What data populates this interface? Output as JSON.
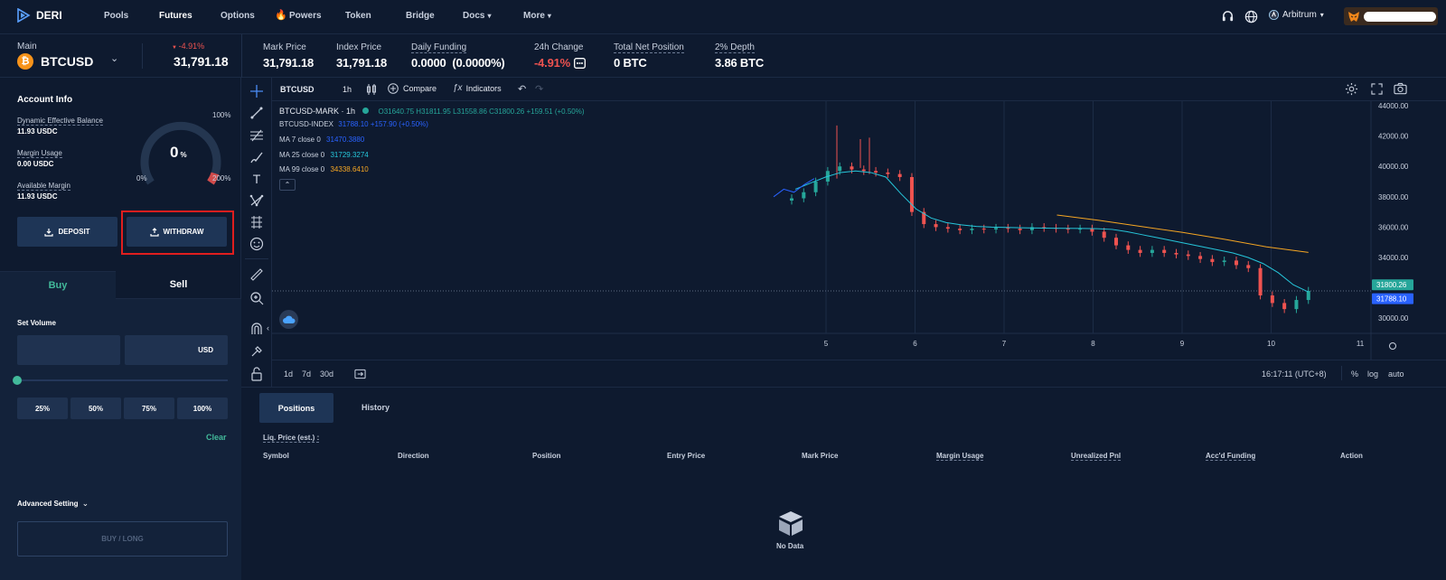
{
  "nav": {
    "logo": "DERI",
    "items": [
      "Pools",
      "Futures",
      "Options",
      "Powers",
      "Token",
      "Bridge",
      "Docs",
      "More"
    ],
    "chain": "Arbitrum"
  },
  "market": {
    "label": "Main",
    "symbol": "BTCUSD",
    "change_pct": "-4.91%",
    "price": "31,791.18",
    "stats": [
      {
        "label": "Mark Price",
        "value": "31,791.18"
      },
      {
        "label": "Index Price",
        "value": "31,791.18"
      },
      {
        "label": "Daily Funding",
        "value": "0.0000  (0.0000%)"
      },
      {
        "label": "24h Change",
        "value": "-4.91%"
      },
      {
        "label": "Total Net Position",
        "value": "0 BTC"
      },
      {
        "label": "2% Depth",
        "value": "3.86 BTC"
      }
    ]
  },
  "account": {
    "title": "Account Info",
    "balance_label": "Dynamic Effective Balance",
    "balance_value": "11.93 USDC",
    "margin_label": "Margin Usage",
    "margin_value": "0.00 USDC",
    "avail_label": "Available Margin",
    "avail_value": "11.93 USDC",
    "gauge_value": "0",
    "gauge_unit": "%",
    "gauge_min": "0%",
    "gauge_mid": "100%",
    "gauge_max": "200%",
    "deposit": "DEPOSIT",
    "withdraw": "WITHDRAW"
  },
  "trade": {
    "buy": "Buy",
    "sell": "Sell",
    "set_volume": "Set Volume",
    "unit": "USD",
    "percents": [
      "25%",
      "50%",
      "75%",
      "100%"
    ],
    "clear": "Clear",
    "advanced": "Advanced Setting",
    "submit": "BUY / LONG"
  },
  "chart_header": {
    "symbol": "BTCUSD",
    "interval": "1h",
    "compare": "Compare",
    "indicators": "Indicators"
  },
  "legend": {
    "mark_title": "BTCUSD-MARK · 1h",
    "ohlc": "O31640.75  H31811.95  L31558.86  C31800.26  +159.51 (+0.50%)",
    "index_title": "BTCUSD-INDEX",
    "index_val": "31788.10  +157.90 (+0.50%)",
    "ma7": "MA 7 close 0",
    "ma7_val": "31470.3880",
    "ma25": "MA 25 close 0",
    "ma25_val": "31729.3274",
    "ma99": "MA 99 close 0",
    "ma99_val": "34338.6410"
  },
  "chart_bottom": {
    "ranges": [
      "1d",
      "7d",
      "30d"
    ],
    "time": "16:17:11 (UTC+8)",
    "pct": "%",
    "log": "log",
    "auto": "auto"
  },
  "chart_data": {
    "type": "candlestick",
    "x_ticks": [
      "5",
      "6",
      "7",
      "8",
      "9",
      "10",
      "11"
    ],
    "y_ticks": [
      "44000.00",
      "42000.00",
      "40000.00",
      "38000.00",
      "36000.00",
      "34000.00",
      "30000.00"
    ],
    "ylim": [
      29000,
      44300
    ],
    "last_mark": "31800.26",
    "last_index": "31788.10",
    "colors": {
      "up": "#26a69a",
      "down": "#ef5350",
      "ma7": "#2962ff",
      "ma25": "#26c6da",
      "ma99": "#f5a623"
    },
    "close": [
      37900,
      38300,
      39000,
      39700,
      40000,
      39800,
      39700,
      39600,
      39500,
      39300,
      37000,
      36200,
      36000,
      35900,
      35800,
      35900,
      35850,
      35950,
      35900,
      35800,
      36000,
      35950,
      35900,
      35850,
      35900,
      35700,
      35300,
      34800,
      34500,
      34300,
      34500,
      34300,
      34200,
      34100,
      33900,
      33700,
      33800,
      33500,
      33300,
      31500,
      31000,
      30600,
      31200,
      31800
    ],
    "ma25": [
      38500,
      38900,
      39300,
      39600,
      39700,
      39600,
      39300,
      38200,
      37200,
      36600,
      36300,
      36150,
      36050,
      36000,
      35980,
      35960,
      35940,
      35930,
      35920,
      35910,
      35900,
      35850,
      35700,
      35500,
      35300,
      35100,
      34900,
      34700,
      34500,
      34300,
      34000,
      33600,
      33000,
      32200,
      31730
    ],
    "ma99": [
      36800,
      36450,
      36050,
      35650,
      35200,
      34700,
      34338
    ]
  },
  "positions": {
    "tabs": [
      "Positions",
      "History"
    ],
    "liq": "Liq. Price (est.) :",
    "columns": [
      "Symbol",
      "Direction",
      "Position",
      "Entry Price",
      "Mark Price",
      "Margin Usage",
      "Unrealized Pnl",
      "Acc'd Funding",
      "Action"
    ],
    "empty": "No Data"
  }
}
